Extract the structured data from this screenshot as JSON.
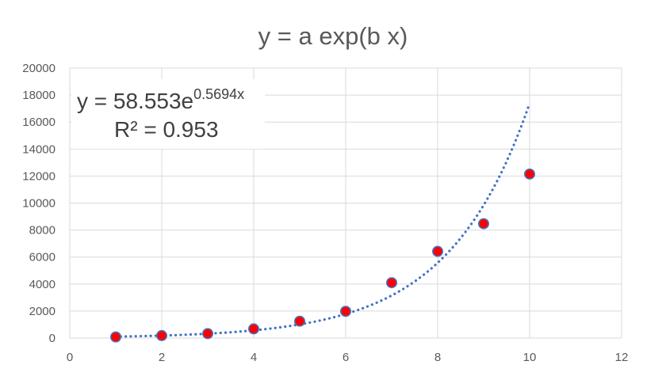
{
  "chart_data": {
    "type": "scatter",
    "title": "y = a exp(b x)",
    "xlabel": "",
    "ylabel": "",
    "xlim": [
      0,
      12
    ],
    "ylim": [
      0,
      20000
    ],
    "x_ticks": [
      0,
      2,
      4,
      6,
      8,
      10,
      12
    ],
    "y_ticks": [
      0,
      2000,
      4000,
      6000,
      8000,
      10000,
      12000,
      14000,
      16000,
      18000,
      20000
    ],
    "grid": true,
    "legend": "none",
    "series": [
      {
        "x": [
          1,
          2,
          3,
          4,
          5,
          6,
          7,
          8,
          9,
          10
        ],
        "y": [
          80,
          180,
          330,
          680,
          1250,
          1980,
          4100,
          6420,
          8470,
          12150
        ],
        "marker_fill": "#ff0000",
        "marker_edge": "#4472c4"
      }
    ],
    "trendline": {
      "type": "exponential",
      "a": 58.553,
      "b": 0.5694,
      "x_range": [
        1,
        10
      ],
      "color": "#4472c4",
      "style": "dotted"
    },
    "annotation": {
      "equation_base": "y = 58.553e",
      "equation_exponent": "0.5694x",
      "r_squared": "R² = 0.953"
    }
  }
}
